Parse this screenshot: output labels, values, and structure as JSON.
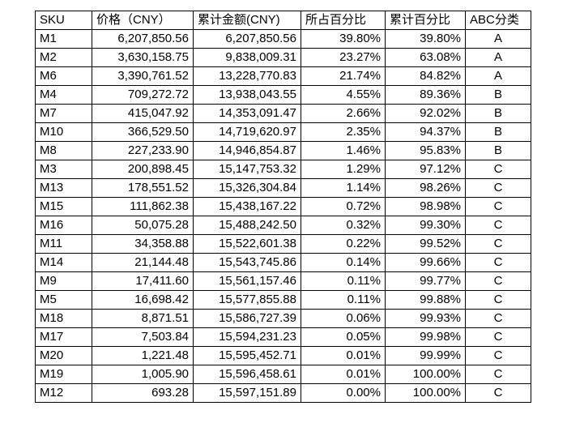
{
  "table": {
    "columns": [
      {
        "id": "sku",
        "label": "SKU",
        "align": "left",
        "header_align": "left"
      },
      {
        "id": "price",
        "label": "价格（CNY）",
        "align": "right",
        "header_align": "left"
      },
      {
        "id": "cum_amt",
        "label": "累计金额(CNY)",
        "align": "right",
        "header_align": "left"
      },
      {
        "id": "pct",
        "label": "所占百分比",
        "align": "right",
        "header_align": "left"
      },
      {
        "id": "cum_pct",
        "label": "累计百分比",
        "align": "right",
        "header_align": "left"
      },
      {
        "id": "abc",
        "label": "ABC分类",
        "align": "center",
        "header_align": "left"
      }
    ],
    "rows": [
      {
        "sku": "M1",
        "price": "6,207,850.56",
        "cum_amt": "6,207,850.56",
        "pct": "39.80%",
        "cum_pct": "39.80%",
        "abc": "A"
      },
      {
        "sku": "M2",
        "price": "3,630,158.75",
        "cum_amt": "9,838,009.31",
        "pct": "23.27%",
        "cum_pct": "63.08%",
        "abc": "A"
      },
      {
        "sku": "M6",
        "price": "3,390,761.52",
        "cum_amt": "13,228,770.83",
        "pct": "21.74%",
        "cum_pct": "84.82%",
        "abc": "A"
      },
      {
        "sku": "M4",
        "price": "709,272.72",
        "cum_amt": "13,938,043.55",
        "pct": "4.55%",
        "cum_pct": "89.36%",
        "abc": "B"
      },
      {
        "sku": "M7",
        "price": "415,047.92",
        "cum_amt": "14,353,091.47",
        "pct": "2.66%",
        "cum_pct": "92.02%",
        "abc": "B"
      },
      {
        "sku": "M10",
        "price": "366,529.50",
        "cum_amt": "14,719,620.97",
        "pct": "2.35%",
        "cum_pct": "94.37%",
        "abc": "B"
      },
      {
        "sku": "M8",
        "price": "227,233.90",
        "cum_amt": "14,946,854.87",
        "pct": "1.46%",
        "cum_pct": "95.83%",
        "abc": "B"
      },
      {
        "sku": "M3",
        "price": "200,898.45",
        "cum_amt": "15,147,753.32",
        "pct": "1.29%",
        "cum_pct": "97.12%",
        "abc": "C"
      },
      {
        "sku": "M13",
        "price": "178,551.52",
        "cum_amt": "15,326,304.84",
        "pct": "1.14%",
        "cum_pct": "98.26%",
        "abc": "C"
      },
      {
        "sku": "M15",
        "price": "111,862.38",
        "cum_amt": "15,438,167.22",
        "pct": "0.72%",
        "cum_pct": "98.98%",
        "abc": "C"
      },
      {
        "sku": "M16",
        "price": "50,075.28",
        "cum_amt": "15,488,242.50",
        "pct": "0.32%",
        "cum_pct": "99.30%",
        "abc": "C"
      },
      {
        "sku": "M11",
        "price": "34,358.88",
        "cum_amt": "15,522,601.38",
        "pct": "0.22%",
        "cum_pct": "99.52%",
        "abc": "C"
      },
      {
        "sku": "M14",
        "price": "21,144.48",
        "cum_amt": "15,543,745.86",
        "pct": "0.14%",
        "cum_pct": "99.66%",
        "abc": "C"
      },
      {
        "sku": "M9",
        "price": "17,411.60",
        "cum_amt": "15,561,157.46",
        "pct": "0.11%",
        "cum_pct": "99.77%",
        "abc": "C"
      },
      {
        "sku": "M5",
        "price": "16,698.42",
        "cum_amt": "15,577,855.88",
        "pct": "0.11%",
        "cum_pct": "99.88%",
        "abc": "C"
      },
      {
        "sku": "M18",
        "price": "8,871.51",
        "cum_amt": "15,586,727.39",
        "pct": "0.06%",
        "cum_pct": "99.93%",
        "abc": "C"
      },
      {
        "sku": "M17",
        "price": "7,503.84",
        "cum_amt": "15,594,231.23",
        "pct": "0.05%",
        "cum_pct": "99.98%",
        "abc": "C"
      },
      {
        "sku": "M20",
        "price": "1,221.48",
        "cum_amt": "15,595,452.71",
        "pct": "0.01%",
        "cum_pct": "99.99%",
        "abc": "C"
      },
      {
        "sku": "M19",
        "price": "1,005.90",
        "cum_amt": "15,596,458.61",
        "pct": "0.01%",
        "cum_pct": "100.00%",
        "abc": "C"
      },
      {
        "sku": "M12",
        "price": "693.28",
        "cum_amt": "15,597,151.89",
        "pct": "0.00%",
        "cum_pct": "100.00%",
        "abc": "C"
      }
    ]
  },
  "colors": {
    "border": "#000000",
    "text": "#000000",
    "background": "#ffffff"
  }
}
